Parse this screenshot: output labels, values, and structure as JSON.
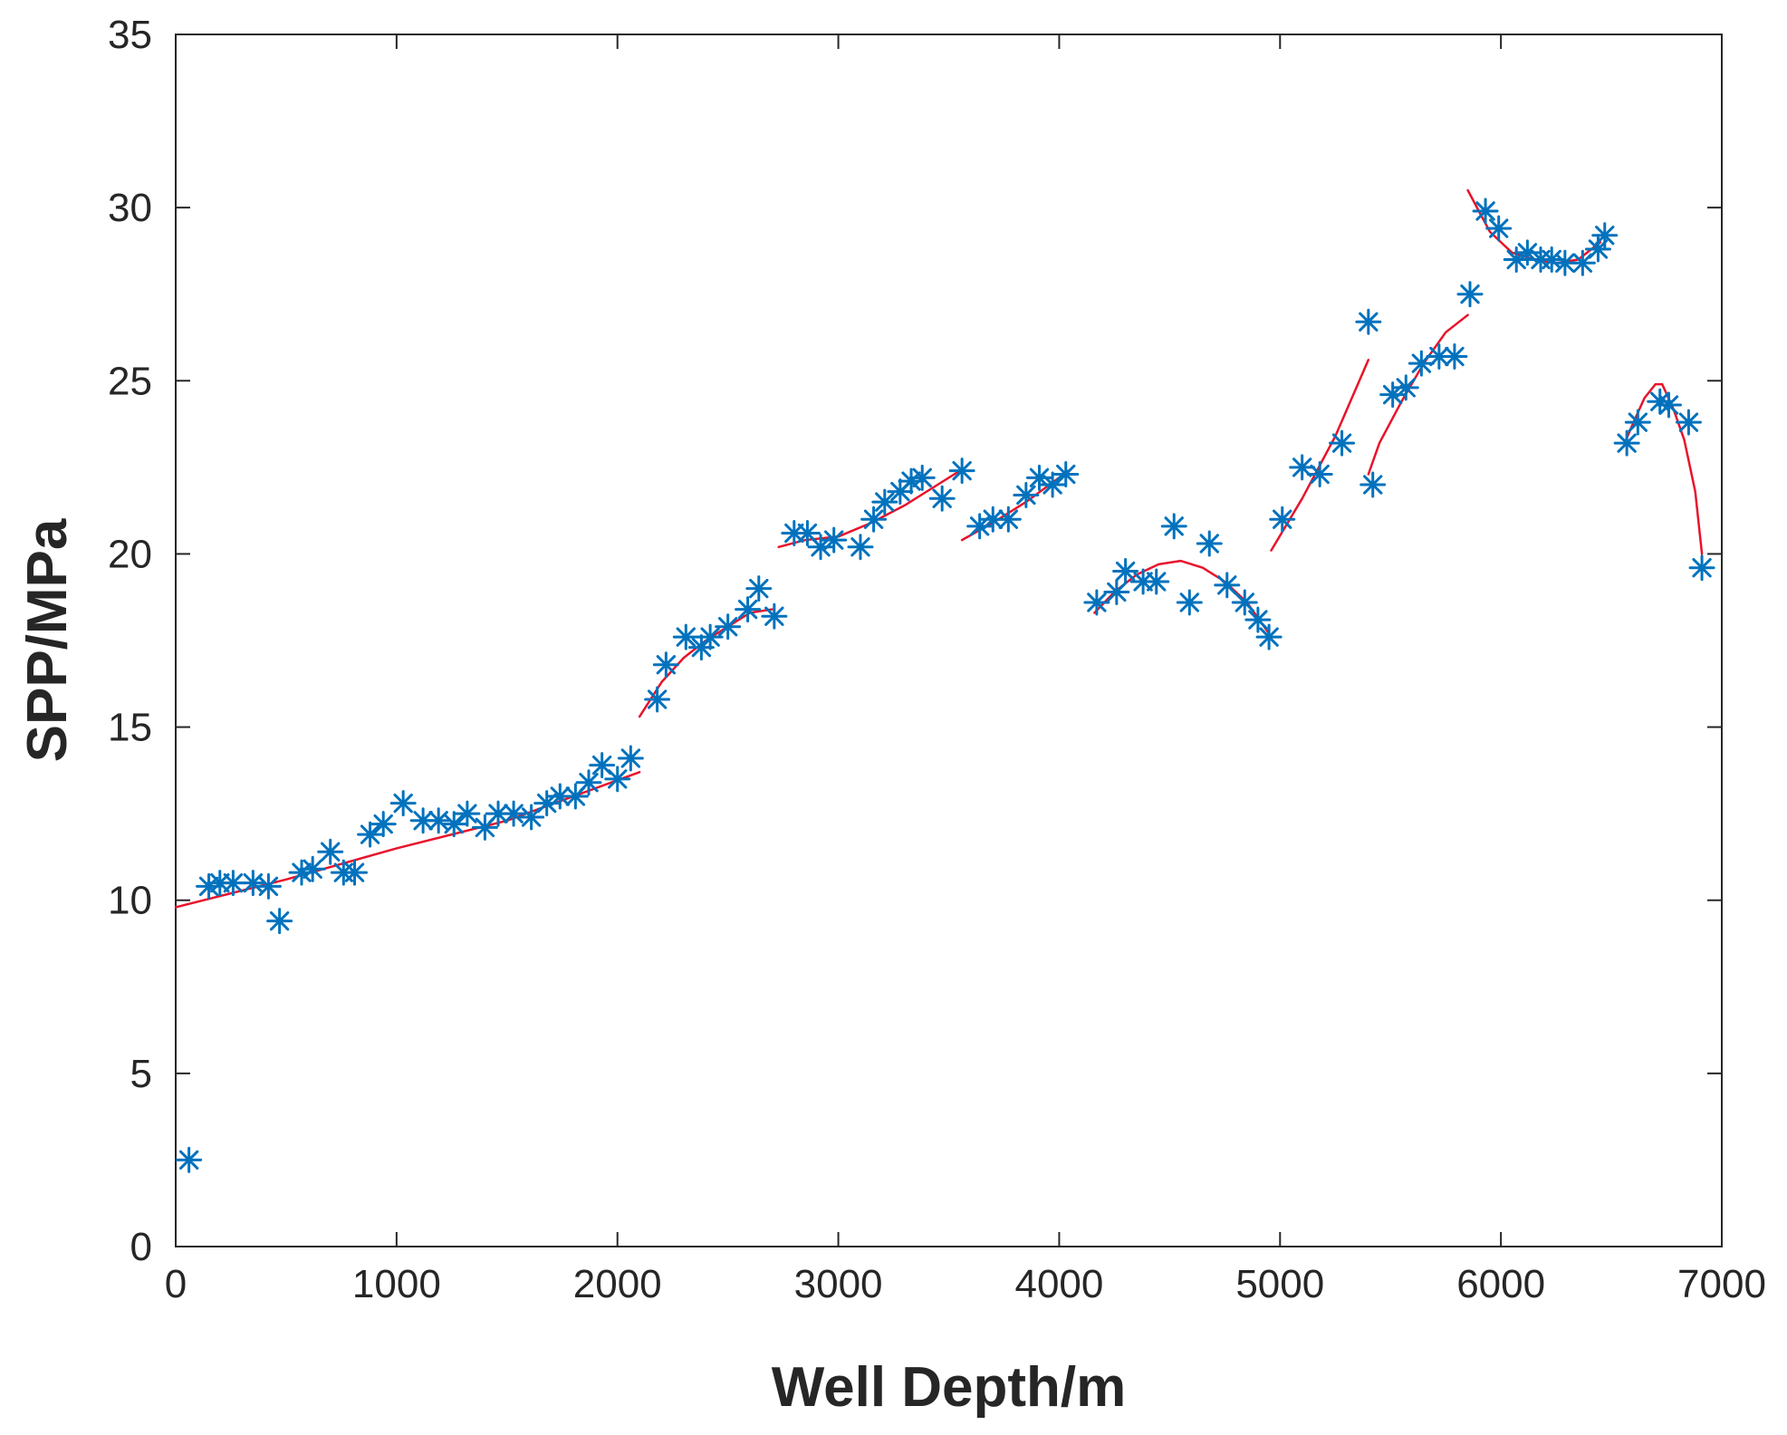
{
  "chart_data": {
    "type": "scatter",
    "title": "",
    "xlabel": "Well Depth/m",
    "ylabel": "SPP/MPa",
    "xlim": [
      0,
      7000
    ],
    "ylim": [
      0,
      35
    ],
    "xticks": [
      0,
      1000,
      2000,
      3000,
      4000,
      5000,
      6000,
      7000
    ],
    "yticks": [
      0,
      5,
      10,
      15,
      20,
      25,
      30,
      35
    ],
    "xtick_labels": [
      "0",
      "1000",
      "2000",
      "3000",
      "4000",
      "5000",
      "6000",
      "7000"
    ],
    "ytick_labels": [
      "0",
      "5",
      "10",
      "15",
      "20",
      "25",
      "30",
      "35"
    ],
    "grid": false,
    "legend": "none",
    "colors": {
      "marker": "#0072bd",
      "fit": "#e8132b",
      "axis": "#262626"
    },
    "series": [
      {
        "type": "scatter",
        "marker": "asterisk",
        "points": [
          [
            60,
            2.5
          ],
          [
            150,
            10.4
          ],
          [
            200,
            10.5
          ],
          [
            260,
            10.5
          ],
          [
            350,
            10.5
          ],
          [
            420,
            10.4
          ],
          [
            470,
            9.4
          ],
          [
            570,
            10.8
          ],
          [
            620,
            10.9
          ],
          [
            700,
            11.4
          ],
          [
            760,
            10.8
          ],
          [
            810,
            10.8
          ],
          [
            880,
            11.9
          ],
          [
            940,
            12.2
          ],
          [
            1030,
            12.8
          ],
          [
            1120,
            12.3
          ],
          [
            1190,
            12.3
          ],
          [
            1260,
            12.2
          ],
          [
            1320,
            12.5
          ],
          [
            1400,
            12.1
          ],
          [
            1460,
            12.5
          ],
          [
            1530,
            12.5
          ],
          [
            1610,
            12.4
          ],
          [
            1680,
            12.8
          ],
          [
            1740,
            13.0
          ],
          [
            1810,
            13.0
          ],
          [
            1870,
            13.4
          ],
          [
            1930,
            13.9
          ],
          [
            2000,
            13.5
          ],
          [
            2060,
            14.1
          ],
          [
            2180,
            15.8
          ],
          [
            2220,
            16.8
          ],
          [
            2310,
            17.6
          ],
          [
            2380,
            17.3
          ],
          [
            2420,
            17.6
          ],
          [
            2500,
            17.9
          ],
          [
            2590,
            18.4
          ],
          [
            2640,
            19.0
          ],
          [
            2710,
            18.2
          ],
          [
            2800,
            20.6
          ],
          [
            2860,
            20.6
          ],
          [
            2920,
            20.2
          ],
          [
            2980,
            20.4
          ],
          [
            3100,
            20.2
          ],
          [
            3160,
            21.0
          ],
          [
            3210,
            21.5
          ],
          [
            3280,
            21.8
          ],
          [
            3330,
            22.1
          ],
          [
            3380,
            22.2
          ],
          [
            3470,
            21.6
          ],
          [
            3560,
            22.4
          ],
          [
            3640,
            20.8
          ],
          [
            3700,
            21.0
          ],
          [
            3770,
            21.0
          ],
          [
            3850,
            21.7
          ],
          [
            3910,
            22.2
          ],
          [
            3970,
            22.0
          ],
          [
            4030,
            22.3
          ],
          [
            4170,
            18.6
          ],
          [
            4260,
            18.9
          ],
          [
            4300,
            19.5
          ],
          [
            4380,
            19.2
          ],
          [
            4440,
            19.2
          ],
          [
            4520,
            20.8
          ],
          [
            4590,
            18.6
          ],
          [
            4680,
            20.3
          ],
          [
            4760,
            19.1
          ],
          [
            4840,
            18.6
          ],
          [
            4900,
            18.1
          ],
          [
            4950,
            17.6
          ],
          [
            5010,
            21.0
          ],
          [
            5100,
            22.5
          ],
          [
            5180,
            22.3
          ],
          [
            5280,
            23.2
          ],
          [
            5400,
            26.7
          ],
          [
            5420,
            22.0
          ],
          [
            5510,
            24.6
          ],
          [
            5570,
            24.8
          ],
          [
            5640,
            25.5
          ],
          [
            5720,
            25.7
          ],
          [
            5790,
            25.7
          ],
          [
            5860,
            27.5
          ],
          [
            5930,
            29.9
          ],
          [
            5990,
            29.4
          ],
          [
            6070,
            28.5
          ],
          [
            6120,
            28.7
          ],
          [
            6180,
            28.5
          ],
          [
            6230,
            28.5
          ],
          [
            6290,
            28.4
          ],
          [
            6370,
            28.4
          ],
          [
            6440,
            28.8
          ],
          [
            6470,
            29.2
          ],
          [
            6570,
            23.2
          ],
          [
            6620,
            23.8
          ],
          [
            6720,
            24.4
          ],
          [
            6760,
            24.3
          ],
          [
            6850,
            23.8
          ],
          [
            6910,
            19.6
          ]
        ]
      },
      {
        "type": "line",
        "segments": [
          [
            [
              0,
              9.8
            ],
            [
              500,
              10.6
            ],
            [
              1000,
              11.5
            ],
            [
              1500,
              12.3
            ],
            [
              2100,
              13.7
            ]
          ],
          [
            [
              2100,
              15.3
            ],
            [
              2200,
              16.3
            ],
            [
              2300,
              17.0
            ],
            [
              2400,
              17.5
            ],
            [
              2500,
              17.9
            ],
            [
              2600,
              18.3
            ],
            [
              2700,
              18.4
            ]
          ],
          [
            [
              2730,
              20.2
            ],
            [
              2850,
              20.4
            ],
            [
              3000,
              20.5
            ],
            [
              3150,
              20.9
            ],
            [
              3300,
              21.4
            ],
            [
              3450,
              22.0
            ],
            [
              3550,
              22.4
            ]
          ],
          [
            [
              3560,
              20.4
            ],
            [
              3700,
              20.9
            ],
            [
              3850,
              21.5
            ],
            [
              4000,
              22.2
            ],
            [
              4040,
              22.4
            ]
          ],
          [
            [
              4160,
              18.3
            ],
            [
              4250,
              18.9
            ],
            [
              4350,
              19.4
            ],
            [
              4450,
              19.7
            ],
            [
              4550,
              19.8
            ],
            [
              4650,
              19.6
            ],
            [
              4750,
              19.2
            ],
            [
              4850,
              18.6
            ],
            [
              4950,
              17.7
            ]
          ],
          [
            [
              4960,
              20.1
            ],
            [
              5100,
              21.6
            ],
            [
              5250,
              23.4
            ],
            [
              5400,
              25.6
            ]
          ],
          [
            [
              5400,
              22.3
            ],
            [
              5450,
              23.2
            ],
            [
              5550,
              24.4
            ],
            [
              5650,
              25.5
            ],
            [
              5750,
              26.4
            ],
            [
              5850,
              26.9
            ]
          ],
          [
            [
              5850,
              30.5
            ],
            [
              5900,
              29.9
            ],
            [
              5950,
              29.3
            ],
            [
              6050,
              28.7
            ],
            [
              6150,
              28.5
            ],
            [
              6250,
              28.4
            ],
            [
              6350,
              28.5
            ],
            [
              6450,
              29.0
            ]
          ],
          [
            [
              6560,
              23.2
            ],
            [
              6600,
              23.8
            ],
            [
              6650,
              24.5
            ],
            [
              6700,
              24.9
            ],
            [
              6730,
              24.9
            ],
            [
              6780,
              24.2
            ],
            [
              6830,
              23.3
            ],
            [
              6880,
              21.8
            ],
            [
              6910,
              20.0
            ]
          ]
        ]
      }
    ]
  }
}
